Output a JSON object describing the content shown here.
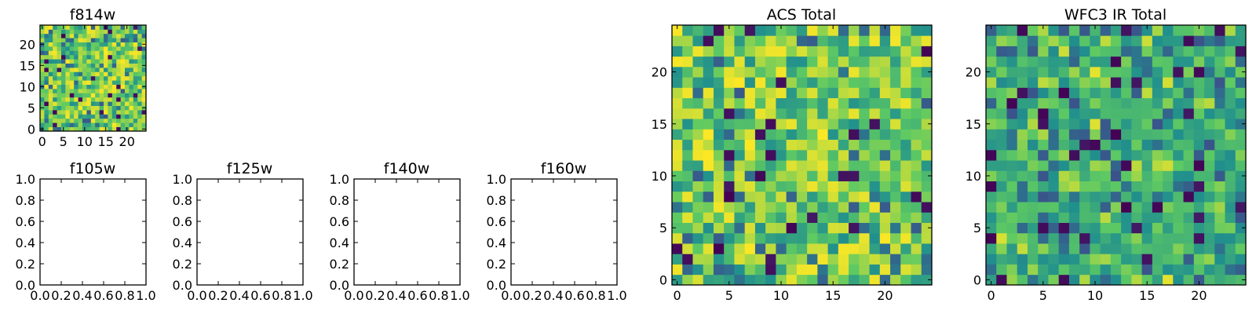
{
  "figure": {
    "colormap": "viridis",
    "colormap_stops": [
      "#440154",
      "#3b528b",
      "#21908d",
      "#5dc963",
      "#fde725"
    ]
  },
  "chart_data": [
    {
      "id": "f814w",
      "type": "heatmap",
      "title": "f814w",
      "grid": [
        25,
        25
      ],
      "seed": 11,
      "distribution": "mostly_high",
      "xticks": [
        0,
        5,
        10,
        15,
        20
      ],
      "yticks": [
        0,
        5,
        10,
        15,
        20
      ],
      "xlim": [
        -0.5,
        24.5
      ],
      "ylim": [
        -0.5,
        24.5
      ],
      "xlabel": "",
      "ylabel": "",
      "grid_lines": false
    },
    {
      "id": "f105w",
      "type": "empty",
      "title": "f105w",
      "xlim": [
        0.0,
        1.0
      ],
      "ylim": [
        0.0,
        1.0
      ],
      "xticks": [
        "0.0",
        "0.2",
        "0.4",
        "0.6",
        "0.8",
        "1.0"
      ],
      "yticks": [
        "0.0",
        "0.2",
        "0.4",
        "0.6",
        "0.8",
        "1.0"
      ]
    },
    {
      "id": "f125w",
      "type": "empty",
      "title": "f125w",
      "xlim": [
        0.0,
        1.0
      ],
      "ylim": [
        0.0,
        1.0
      ],
      "xticks": [
        "0.0",
        "0.2",
        "0.4",
        "0.6",
        "0.8",
        "1.0"
      ],
      "yticks": [
        "0.0",
        "0.2",
        "0.4",
        "0.6",
        "0.8",
        "1.0"
      ]
    },
    {
      "id": "f140w",
      "type": "empty",
      "title": "f140w",
      "xlim": [
        0.0,
        1.0
      ],
      "ylim": [
        0.0,
        1.0
      ],
      "xticks": [
        "0.0",
        "0.2",
        "0.4",
        "0.6",
        "0.8",
        "1.0"
      ],
      "yticks": [
        "0.0",
        "0.2",
        "0.4",
        "0.6",
        "0.8",
        "1.0"
      ]
    },
    {
      "id": "f160w",
      "type": "empty",
      "title": "f160w",
      "xlim": [
        0.0,
        1.0
      ],
      "ylim": [
        0.0,
        1.0
      ],
      "xticks": [
        "0.0",
        "0.2",
        "0.4",
        "0.6",
        "0.8",
        "1.0"
      ],
      "yticks": [
        "0.0",
        "0.2",
        "0.4",
        "0.6",
        "0.8",
        "1.0"
      ]
    },
    {
      "id": "acs-total",
      "type": "heatmap",
      "title": "ACS Total",
      "grid": [
        25,
        25
      ],
      "seed": 23,
      "distribution": "mostly_high",
      "xticks": [
        0,
        5,
        10,
        15,
        20
      ],
      "yticks": [
        0,
        5,
        10,
        15,
        20
      ],
      "xlim": [
        -0.5,
        24.5
      ],
      "ylim": [
        -0.5,
        24.5
      ],
      "xlabel": "",
      "ylabel": "",
      "grid_lines": false
    },
    {
      "id": "wfc3-ir-total",
      "type": "heatmap",
      "title": "WFC3 IR Total",
      "grid": [
        25,
        25
      ],
      "seed": 47,
      "distribution": "mid",
      "xticks": [
        0,
        5,
        10,
        15,
        20
      ],
      "yticks": [
        0,
        5,
        10,
        15,
        20
      ],
      "xlim": [
        -0.5,
        24.5
      ],
      "ylim": [
        -0.5,
        24.5
      ],
      "xlabel": "",
      "ylabel": "",
      "grid_lines": false
    }
  ]
}
